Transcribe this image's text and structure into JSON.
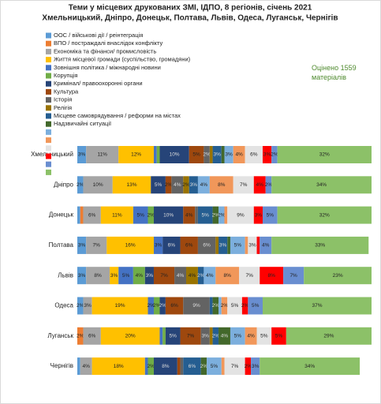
{
  "chart_data": {
    "type": "stacked-bar-horizontal",
    "title": "Теми у місцевих друкованих ЗМІ, ІДПО, 8 регіонів, січень 2021",
    "subtitle": "Хмельницький, Дніпро, Донецьк, Полтава, Львів, Одеса, Луганськ, Чернігів",
    "annotation": "Оцінено 1559 матеріалів",
    "categories": [
      "Хмельницький",
      "Дніпро",
      "Донецьк",
      "Полтава",
      "Львів",
      "Одеса",
      "Луганськ",
      "Чернігів"
    ],
    "xlim": [
      0,
      100
    ],
    "series": [
      {
        "name": "ООС / військові дії / реінтеграція",
        "color": "#5b9bd5",
        "values": [
          3,
          2,
          1,
          3,
          3,
          2,
          0,
          1
        ],
        "value_labels": [
          "3%",
          "2%",
          null,
          "3%",
          "3%",
          "2%",
          null,
          null
        ]
      },
      {
        "name": "ВПО / постраждалі  внаслідок конфлікту",
        "color": "#ed7d31",
        "values": [
          0,
          0,
          1,
          0,
          0,
          0,
          2,
          0
        ],
        "value_labels": [
          null,
          null,
          null,
          null,
          null,
          null,
          "2%",
          null
        ]
      },
      {
        "name": "Економіка та фінанси/ промисловість",
        "color": "#a5a5a5",
        "values": [
          11,
          10,
          6,
          7,
          8,
          3,
          6,
          4
        ],
        "value_labels": [
          "11%",
          "10%",
          "6%",
          "7%",
          "8%",
          "3%",
          "6%",
          "4%"
        ]
      },
      {
        "name": "Життя місцевої громади (суспільство, громадяни)",
        "color": "#ffc000",
        "values": [
          12,
          13,
          11,
          16,
          3,
          19,
          20,
          18
        ],
        "value_labels": [
          "12%",
          "13%",
          "11%",
          "16%",
          "3%",
          "19%",
          "20%",
          "18%"
        ]
      },
      {
        "name": "Зовнішня політика / міжнародні новини",
        "color": "#4472c4",
        "values": [
          1,
          0,
          5,
          3,
          5,
          2,
          1,
          1
        ],
        "value_labels": [
          null,
          null,
          "5%",
          "3%",
          "5%",
          "2%",
          null,
          null
        ]
      },
      {
        "name": "Корупція",
        "color": "#70ad47",
        "values": [
          1,
          0,
          2,
          0,
          4,
          2,
          1,
          2
        ],
        "value_labels": [
          null,
          null,
          "2%",
          null,
          "4%",
          "2%",
          null,
          "2%"
        ]
      },
      {
        "name": "Кримінал/ правоохоронні органи",
        "color": "#264478",
        "values": [
          10,
          5,
          10,
          6,
          3,
          2,
          5,
          8
        ],
        "value_labels": [
          "10%",
          "5%",
          "10%",
          "6%",
          "3%",
          "2%",
          "5%",
          "8%"
        ]
      },
      {
        "name": "Культура",
        "color": "#9e480e",
        "values": [
          5,
          2,
          4,
          6,
          7,
          6,
          7,
          1
        ],
        "value_labels": [
          "5%",
          "2%",
          "4%",
          "6%",
          "7%",
          "6%",
          "7%",
          null
        ]
      },
      {
        "name": "Історія",
        "color": "#636363",
        "values": [
          2,
          4,
          1,
          6,
          4,
          9,
          3,
          1
        ],
        "value_labels": [
          "2%",
          "4%",
          null,
          "6%",
          "4%",
          "9%",
          "3%",
          null
        ]
      },
      {
        "name": "Релігія",
        "color": "#997300",
        "values": [
          1,
          2,
          0,
          1,
          4,
          0,
          1,
          0
        ],
        "value_labels": [
          null,
          "2%",
          null,
          null,
          "4%",
          null,
          null,
          null
        ]
      },
      {
        "name": "Місцеве самоврядування / реформи на містах",
        "color": "#255e91",
        "values": [
          3,
          3,
          5,
          3,
          2,
          1,
          2,
          6
        ],
        "value_labels": [
          "3%",
          "3%",
          "5%",
          "3%",
          "2%",
          null,
          "2%",
          "6%"
        ]
      },
      {
        "name": "Надзвичайні ситуації",
        "color": "#43682b",
        "values": [
          1,
          0,
          2,
          1,
          0,
          2,
          4,
          2
        ],
        "value_labels": [
          null,
          null,
          "2%",
          null,
          null,
          "2%",
          "4%",
          "2%"
        ]
      },
      {
        "name": null,
        "color": "#7cafdd",
        "values": [
          3,
          4,
          2,
          5,
          4,
          1,
          5,
          5
        ],
        "value_labels": [
          "3%",
          "4%",
          "2%",
          "5%",
          "4%",
          null,
          "5%",
          "5%"
        ]
      },
      {
        "name": null,
        "color": "#f1975a",
        "values": [
          4,
          8,
          1,
          1,
          8,
          2,
          4,
          1
        ],
        "value_labels": [
          "4%",
          "8%",
          null,
          null,
          "8%",
          "2%",
          "4%",
          null
        ]
      },
      {
        "name": null,
        "color": "#e3e3e3",
        "values": [
          6,
          7,
          9,
          3,
          7,
          5,
          5,
          7
        ],
        "value_labels": [
          "6%",
          "7%",
          "9%",
          "3%",
          "7%",
          "5%",
          "5%",
          "7%"
        ]
      },
      {
        "name": null,
        "color": "#ff0000",
        "values": [
          3,
          4,
          3,
          1,
          8,
          2,
          5,
          2
        ],
        "value_labels": [
          "3%",
          "4%",
          "3%",
          null,
          "8%",
          "2%",
          "5%",
          "2%"
        ]
      },
      {
        "name": null,
        "color": "#698ed0",
        "values": [
          2,
          2,
          5,
          4,
          7,
          5,
          0,
          3
        ],
        "value_labels": [
          "2%",
          "2%",
          "5%",
          "4%",
          "7%",
          "5%",
          null,
          "3%"
        ]
      },
      {
        "name": null,
        "color": "#8cc168",
        "values": [
          32,
          34,
          32,
          33,
          23,
          37,
          29,
          34
        ],
        "value_labels": [
          "32%",
          "34%",
          "32%",
          "33%",
          "23%",
          "37%",
          "29%",
          "34%"
        ]
      }
    ]
  }
}
